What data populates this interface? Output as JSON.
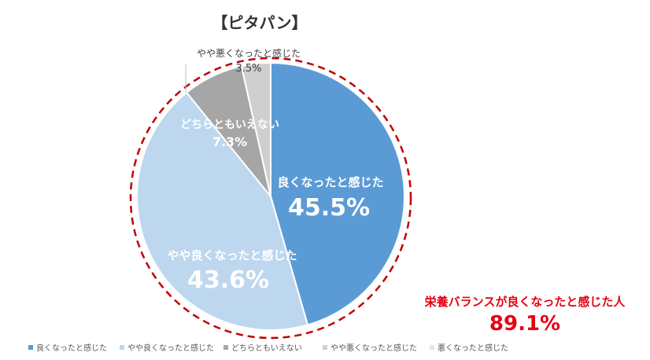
{
  "chart_data": {
    "type": "pie",
    "title": "【ピタパン】",
    "categories": [
      "良くなったと感じた",
      "やや良くなったと感じた",
      "どちらともいえない",
      "やや悪くなったと感じた",
      "悪くなったと感じた"
    ],
    "values": [
      45.5,
      43.6,
      7.3,
      3.5,
      0
    ],
    "value_labels": [
      "45.5%",
      "43.6%",
      "7.3%",
      "3.5%",
      ""
    ],
    "colors": [
      "#5b9bd5",
      "#bdd7ee",
      "#a6a6a6",
      "#d0cece",
      "#e7e6e6"
    ],
    "legend_position": "bottom",
    "annotation": {
      "text": "栄養バランスが良くなったと感じた人",
      "value": "89.1%",
      "color": "#e60012"
    }
  }
}
